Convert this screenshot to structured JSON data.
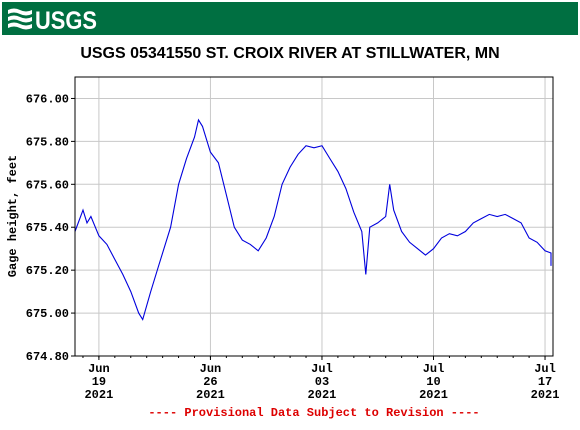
{
  "logo": {
    "text": "USGS",
    "icon": "usgs-wave-icon",
    "banner_color": "#006f41"
  },
  "chart_data": {
    "type": "line",
    "title": "USGS 05341550 ST. CROIX RIVER AT STILLWATER, MN",
    "ylabel": "Gage height, feet",
    "xlabel": "",
    "ylim": [
      674.8,
      676.1
    ],
    "xlim": [
      "2021-06-17T12:00",
      "2021-07-17T12:00"
    ],
    "y_ticks": [
      "674.80",
      "675.00",
      "675.20",
      "675.40",
      "675.60",
      "675.80",
      "676.00"
    ],
    "x_ticks": [
      {
        "x": "2021-06-19",
        "line1": "Jun",
        "line2": "19",
        "line3": "2021"
      },
      {
        "x": "2021-06-26",
        "line1": "Jun",
        "line2": "26",
        "line3": "2021"
      },
      {
        "x": "2021-07-03",
        "line1": "Jul",
        "line2": "03",
        "line3": "2021"
      },
      {
        "x": "2021-07-10",
        "line1": "Jul",
        "line2": "10",
        "line3": "2021"
      },
      {
        "x": "2021-07-17",
        "line1": "Jul",
        "line2": "17",
        "line3": "2021"
      }
    ],
    "grid": true,
    "series_color": "#0000dd",
    "series": [
      {
        "name": "",
        "points": [
          [
            "2021-06-17T12:00",
            675.38
          ],
          [
            "2021-06-18T00:00",
            675.48
          ],
          [
            "2021-06-18T06:00",
            675.42
          ],
          [
            "2021-06-18T12:00",
            675.45
          ],
          [
            "2021-06-19T00:00",
            675.36
          ],
          [
            "2021-06-19T12:00",
            675.32
          ],
          [
            "2021-06-20T00:00",
            675.25
          ],
          [
            "2021-06-20T12:00",
            675.18
          ],
          [
            "2021-06-21T00:00",
            675.1
          ],
          [
            "2021-06-21T12:00",
            675.0
          ],
          [
            "2021-06-21T18:00",
            674.97
          ],
          [
            "2021-06-22T06:00",
            675.1
          ],
          [
            "2021-06-22T18:00",
            675.22
          ],
          [
            "2021-06-23T12:00",
            675.4
          ],
          [
            "2021-06-24T00:00",
            675.6
          ],
          [
            "2021-06-24T12:00",
            675.72
          ],
          [
            "2021-06-25T00:00",
            675.82
          ],
          [
            "2021-06-25T06:00",
            675.9
          ],
          [
            "2021-06-25T12:00",
            675.87
          ],
          [
            "2021-06-26T00:00",
            675.75
          ],
          [
            "2021-06-26T12:00",
            675.7
          ],
          [
            "2021-06-27T00:00",
            675.55
          ],
          [
            "2021-06-27T12:00",
            675.4
          ],
          [
            "2021-06-28T00:00",
            675.34
          ],
          [
            "2021-06-28T12:00",
            675.32
          ],
          [
            "2021-06-29T00:00",
            675.29
          ],
          [
            "2021-06-29T12:00",
            675.35
          ],
          [
            "2021-06-30T00:00",
            675.45
          ],
          [
            "2021-06-30T12:00",
            675.6
          ],
          [
            "2021-07-01T00:00",
            675.68
          ],
          [
            "2021-07-01T12:00",
            675.74
          ],
          [
            "2021-07-02T00:00",
            675.78
          ],
          [
            "2021-07-02T12:00",
            675.77
          ],
          [
            "2021-07-03T00:00",
            675.78
          ],
          [
            "2021-07-03T12:00",
            675.72
          ],
          [
            "2021-07-04T00:00",
            675.66
          ],
          [
            "2021-07-04T12:00",
            675.58
          ],
          [
            "2021-07-05T00:00",
            675.47
          ],
          [
            "2021-07-05T12:00",
            675.38
          ],
          [
            "2021-07-05T18:00",
            675.18
          ],
          [
            "2021-07-06T00:00",
            675.4
          ],
          [
            "2021-07-06T12:00",
            675.42
          ],
          [
            "2021-07-07T00:00",
            675.45
          ],
          [
            "2021-07-07T06:00",
            675.6
          ],
          [
            "2021-07-07T12:00",
            675.48
          ],
          [
            "2021-07-08T00:00",
            675.38
          ],
          [
            "2021-07-08T12:00",
            675.33
          ],
          [
            "2021-07-09T00:00",
            675.3
          ],
          [
            "2021-07-09T12:00",
            675.27
          ],
          [
            "2021-07-10T00:00",
            675.3
          ],
          [
            "2021-07-10T12:00",
            675.35
          ],
          [
            "2021-07-11T00:00",
            675.37
          ],
          [
            "2021-07-11T12:00",
            675.36
          ],
          [
            "2021-07-12T00:00",
            675.38
          ],
          [
            "2021-07-12T12:00",
            675.42
          ],
          [
            "2021-07-13T00:00",
            675.44
          ],
          [
            "2021-07-13T12:00",
            675.46
          ],
          [
            "2021-07-14T00:00",
            675.45
          ],
          [
            "2021-07-14T12:00",
            675.46
          ],
          [
            "2021-07-15T00:00",
            675.44
          ],
          [
            "2021-07-15T12:00",
            675.42
          ],
          [
            "2021-07-16T00:00",
            675.35
          ],
          [
            "2021-07-16T12:00",
            675.33
          ],
          [
            "2021-07-17T00:00",
            675.29
          ],
          [
            "2021-07-17T12:00",
            675.28
          ],
          [
            "2021-07-18T00:00",
            675.26
          ],
          [
            "2021-07-18T06:00",
            675.24
          ],
          [
            "2021-07-18T12:00",
            675.22
          ]
        ]
      }
    ],
    "notice": "---- Provisional Data Subject to Revision ----"
  }
}
